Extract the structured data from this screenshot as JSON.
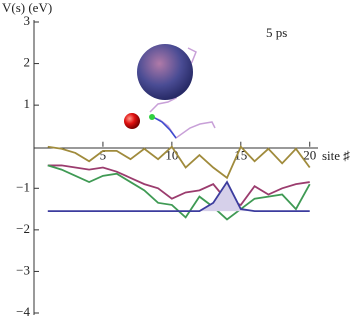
{
  "chart_data": {
    "type": "line",
    "y_label": "V(s) (eV)",
    "x_label": "site ♯",
    "annotation": "5 ps",
    "x": [
      1,
      2,
      3,
      4,
      5,
      6,
      7,
      8,
      9,
      10,
      11,
      12,
      13,
      14,
      15,
      16,
      17,
      18,
      19,
      20
    ],
    "series": [
      {
        "color": "#a08b3c",
        "values": [
          0.0,
          -0.05,
          -0.15,
          -0.35,
          -0.1,
          -0.1,
          -0.3,
          -0.05,
          -0.3,
          0.0,
          -0.5,
          -0.2,
          -0.5,
          -0.75,
          0.0,
          -0.35,
          -0.05,
          -0.4,
          -0.05,
          -0.5
        ]
      },
      {
        "color": "#9b3c6e",
        "values": [
          -0.45,
          -0.45,
          -0.5,
          -0.55,
          -0.5,
          -0.6,
          -0.75,
          -0.9,
          -1.0,
          -1.25,
          -1.1,
          -1.05,
          -0.9,
          -1.3,
          -1.4,
          -0.95,
          -1.15,
          -1.0,
          -0.9,
          -0.85
        ]
      },
      {
        "color": "#3f9a54",
        "values": [
          -0.45,
          -0.55,
          -0.7,
          -0.85,
          -0.7,
          -0.65,
          -0.85,
          -1.05,
          -1.35,
          -1.4,
          -1.7,
          -1.2,
          -1.45,
          -1.75,
          -1.5,
          -1.25,
          -1.2,
          -1.15,
          -1.5,
          -0.9
        ]
      },
      {
        "color": "#3c3c9e",
        "fill": "#d6d0ea",
        "values": [
          -1.55,
          -1.55,
          -1.55,
          -1.55,
          -1.55,
          -1.55,
          -1.55,
          -1.55,
          -1.55,
          -1.55,
          -1.55,
          -1.55,
          -1.35,
          -0.85,
          -1.5,
          -1.55,
          -1.55,
          -1.55,
          -1.55,
          -1.55
        ]
      }
    ],
    "xlim": [
      0,
      20.6
    ],
    "ylim": [
      -4,
      3
    ],
    "xticks": [
      5,
      10,
      15,
      20
    ],
    "yticks": [
      {
        "value": -4,
        "label": "−4"
      },
      {
        "value": -3,
        "label": "−3"
      },
      {
        "value": -2,
        "label": "−2"
      },
      {
        "value": -1,
        "label": "−1"
      },
      1,
      2,
      3
    ]
  }
}
